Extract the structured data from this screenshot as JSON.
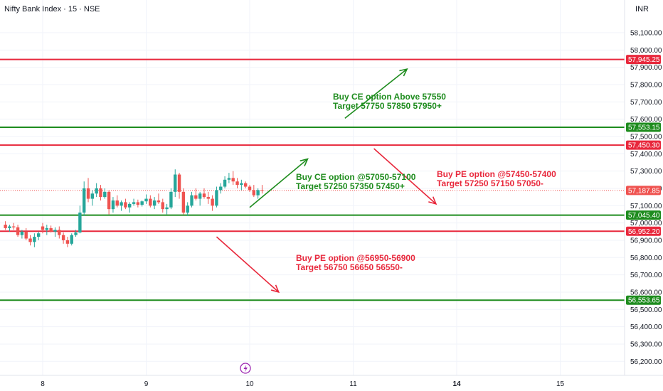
{
  "header": {
    "symbol": "Nifty Bank Index · 15 · NSE",
    "currency": "INR"
  },
  "colors": {
    "green": "#1e8c1e",
    "red": "#e8283c",
    "up": "#26a69a",
    "down": "#ef5350",
    "grid": "#f0f3fa",
    "text": "#131722"
  },
  "chart_data": {
    "type": "candlestick",
    "ylim": [
      56100,
      58240
    ],
    "y_ticks": [
      "58,100.00",
      "58,000.00",
      "57,900.00",
      "57,800.00",
      "57,700.00",
      "57,600.00",
      "57,500.00",
      "57,400.00",
      "57,300.00",
      "57,200.00",
      "57,100.00",
      "57,000.00",
      "56,900.00",
      "56,800.00",
      "56,700.00",
      "56,600.00",
      "56,500.00",
      "56,400.00",
      "56,300.00",
      "56,200.00"
    ],
    "y_tick_values": [
      58100,
      58000,
      57900,
      57800,
      57700,
      57600,
      57500,
      57400,
      57300,
      57200,
      57100,
      57000,
      56900,
      56800,
      56700,
      56600,
      56500,
      56400,
      56300,
      56200
    ],
    "x_ticks": [
      {
        "label": "8",
        "bar": 0,
        "bold": false
      },
      {
        "label": "9",
        "bar": 25,
        "bold": false
      },
      {
        "label": "10",
        "bar": 50,
        "bold": false
      },
      {
        "label": "11",
        "bar": 75,
        "bold": false
      },
      {
        "label": "14",
        "bar": 100,
        "bold": true
      },
      {
        "label": "15",
        "bar": 125,
        "bold": false
      }
    ],
    "candles": [
      [
        56980,
        57000,
        56940,
        56960
      ],
      [
        56960,
        56990,
        56930,
        56970
      ],
      [
        56970,
        56985,
        56945,
        56950
      ],
      [
        56950,
        56975,
        56920,
        56960
      ],
      [
        56960,
        56980,
        56910,
        56930
      ],
      [
        56930,
        56945,
        56880,
        56900
      ],
      [
        56900,
        56920,
        56860,
        56880
      ],
      [
        56880,
        56940,
        56870,
        56930
      ],
      [
        56930,
        56960,
        56920,
        56945
      ],
      [
        56945,
        57100,
        56940,
        57060
      ],
      [
        57060,
        57240,
        57040,
        57200
      ],
      [
        57200,
        57260,
        57120,
        57140
      ],
      [
        57140,
        57190,
        57100,
        57170
      ],
      [
        57170,
        57230,
        57150,
        57200
      ],
      [
        57200,
        57220,
        57130,
        57150
      ],
      [
        57150,
        57200,
        57140,
        57180
      ],
      [
        57180,
        57190,
        57050,
        57080
      ],
      [
        57080,
        57150,
        57060,
        57130
      ],
      [
        57130,
        57160,
        57090,
        57100
      ],
      [
        57100,
        57130,
        57070,
        57120
      ],
      [
        57120,
        57140,
        57080,
        57090
      ],
      [
        57090,
        57120,
        57060,
        57110
      ],
      [
        57110,
        57140,
        57100,
        57120
      ],
      [
        57120,
        57135,
        57090,
        57105
      ],
      [
        57105,
        57130,
        57095,
        57125
      ],
      [
        57125,
        57165,
        57110,
        57140
      ],
      [
        57140,
        57160,
        57090,
        57100
      ],
      [
        57100,
        57150,
        57080,
        57130
      ],
      [
        57130,
        57170,
        57110,
        57120
      ],
      [
        57120,
        57140,
        57060,
        57080
      ],
      [
        57080,
        57110,
        57050,
        57090
      ],
      [
        57090,
        57200,
        57080,
        57180
      ],
      [
        57180,
        57310,
        57150,
        57280
      ],
      [
        57280,
        57290,
        57140,
        57180
      ],
      [
        57180,
        57200,
        57050,
        57060
      ],
      [
        57060,
        57120,
        57040,
        57100
      ],
      [
        57100,
        57180,
        57090,
        57160
      ],
      [
        57160,
        57200,
        57130,
        57140
      ],
      [
        57140,
        57180,
        57100,
        57170
      ],
      [
        57170,
        57200,
        57140,
        57150
      ],
      [
        57150,
        57180,
        57110,
        57140
      ],
      [
        57140,
        57160,
        57070,
        57100
      ],
      [
        57100,
        57210,
        57090,
        57190
      ],
      [
        57190,
        57230,
        57170,
        57210
      ],
      [
        57210,
        57270,
        57200,
        57250
      ],
      [
        57250,
        57290,
        57230,
        57260
      ],
      [
        57260,
        57300,
        57220,
        57240
      ],
      [
        57240,
        57260,
        57200,
        57220
      ],
      [
        57220,
        57250,
        57190,
        57230
      ],
      [
        57230,
        57240,
        57200,
        57210
      ],
      [
        57210,
        57220,
        57180,
        57190
      ],
      [
        57190,
        57220,
        57150,
        57160
      ],
      [
        57160,
        57200,
        57140,
        57190
      ],
      [
        57190,
        57220,
        57170,
        57188
      ]
    ],
    "last_price_label": "57,187.85",
    "horizontal_levels": [
      {
        "value": 57945.25,
        "label": "57,945.25",
        "color": "#e8283c"
      },
      {
        "value": 57553.15,
        "label": "57,553.15",
        "color": "#1e8c1e"
      },
      {
        "value": 57450.3,
        "label": "57,450.30",
        "color": "#e8283c"
      },
      {
        "value": 57045.4,
        "label": "57,045.40",
        "color": "#1e8c1e"
      },
      {
        "value": 56952.2,
        "label": "56,952.20",
        "color": "#e8283c"
      },
      {
        "value": 56553.65,
        "label": "56,553.65",
        "color": "#1e8c1e"
      }
    ],
    "arrows": [
      {
        "from": [
          73,
          57605
        ],
        "to": [
          88,
          57890
        ],
        "color": "#1e8c1e"
      },
      {
        "from": [
          50,
          57090
        ],
        "to": [
          64,
          57370
        ],
        "color": "#1e8c1e"
      },
      {
        "from": [
          80,
          57430
        ],
        "to": [
          95,
          57110
        ],
        "color": "#e8283c"
      },
      {
        "from": [
          42,
          56920
        ],
        "to": [
          57,
          56600
        ],
        "color": "#e8283c"
      }
    ],
    "annotations": [
      {
        "lines": [
          "Buy CE option Above 57550",
          "Target 57750 57850 57950+"
        ],
        "color": "#1e8c1e"
      },
      {
        "lines": [
          "Buy CE option @57050-57100",
          "Target 57250 57350 57450+"
        ],
        "color": "#1e8c1e"
      },
      {
        "lines": [
          "Buy PE option @57450-57400",
          "Target 57250 57150 57050-"
        ],
        "color": "#e8283c"
      },
      {
        "lines": [
          "Buy PE option @56950-56900",
          "Target 56750 56650 56550-"
        ],
        "color": "#e8283c"
      }
    ]
  }
}
